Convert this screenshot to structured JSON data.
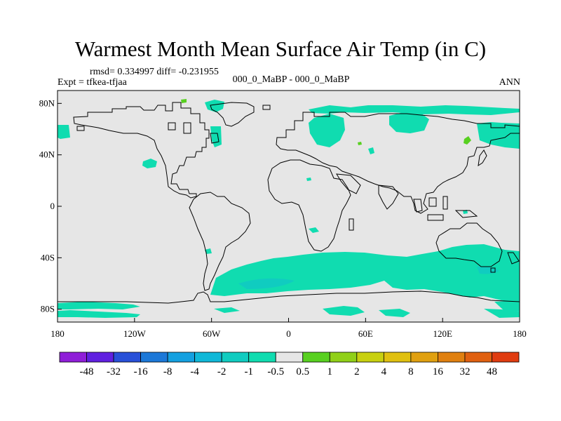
{
  "plot": {
    "title": "Warmest Month Mean Surface Air Temp (in C)",
    "stats": "rmsd= 0.334997 diff= -0.231955",
    "experiment": "Expt = tfkea-tfjaa",
    "center_label": "000_0_MaBP - 000_0_MaBP",
    "season": "ANN"
  },
  "map": {
    "background_color": "#e6e6e6",
    "coast_color": "#000000",
    "lat_ticks": [
      {
        "value": 80,
        "label": "80N"
      },
      {
        "value": 40,
        "label": "40N"
      },
      {
        "value": 0,
        "label": "0"
      },
      {
        "value": -40,
        "label": "40S"
      },
      {
        "value": -80,
        "label": "80S"
      }
    ],
    "lon_ticks": [
      {
        "value": -180,
        "label": "180"
      },
      {
        "value": -120,
        "label": "120W"
      },
      {
        "value": -60,
        "label": "60W"
      },
      {
        "value": 0,
        "label": "0"
      },
      {
        "value": 60,
        "label": "60E"
      },
      {
        "value": 120,
        "label": "120E"
      },
      {
        "value": 180,
        "label": "180"
      }
    ]
  },
  "colorbar": {
    "colors": [
      "#8f1ed8",
      "#6020e0",
      "#2850d8",
      "#1c78d8",
      "#14a0e0",
      "#10b8d8",
      "#10ccc0",
      "#10dcb0",
      "#e6e6e6",
      "#58d020",
      "#90d018",
      "#c8d010",
      "#e0c010",
      "#e0a010",
      "#e08010",
      "#e06010",
      "#e03c10"
    ],
    "labels": [
      "-48",
      "-32",
      "-16",
      "-8",
      "-4",
      "-2",
      "-1",
      "-0.5",
      "0.5",
      "1",
      "2",
      "4",
      "8",
      "16",
      "32",
      "48"
    ]
  }
}
